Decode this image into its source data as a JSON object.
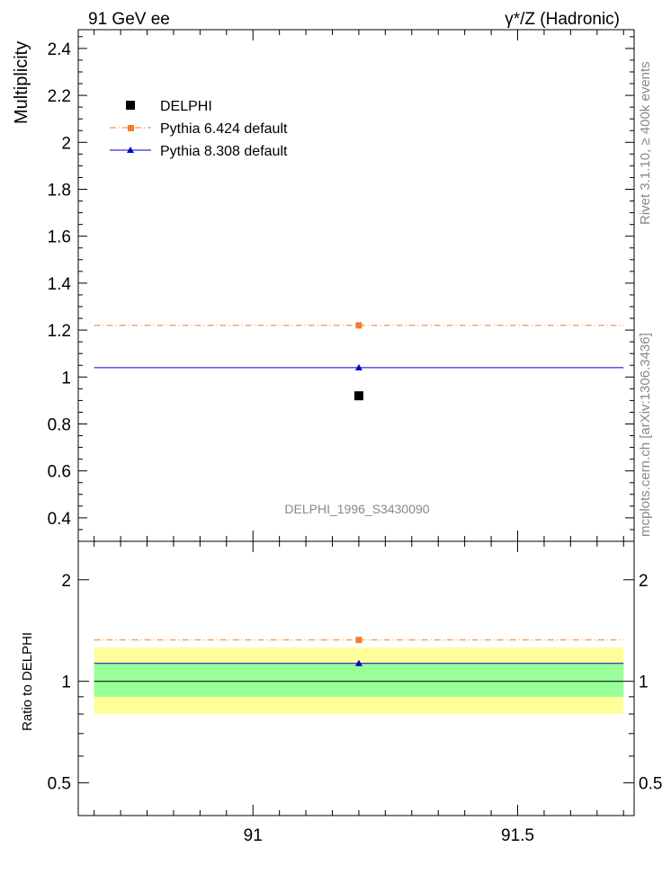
{
  "header": {
    "left": "91 GeV ee",
    "right": "γ*/Z (Hadronic)"
  },
  "side_labels": {
    "rivet": "Rivet 3.1.10, ≥ 400k events",
    "mcplots": "mcplots.cern.ch [arXiv:1306.3436]"
  },
  "watermark": "DELPHI_1996_S3430090",
  "colors": {
    "data": "#000000",
    "pythia6": "#f07e2d",
    "pythia8": "#0000cc",
    "band_inner": "#99ff99",
    "band_outer": "#ffff99",
    "gray_text": "#888888"
  },
  "chart_data": [
    {
      "id": "main",
      "type": "scatter",
      "ylabel": "Multiplicity",
      "xlim": [
        90.67,
        91.72
      ],
      "ylim": [
        0.3,
        2.48
      ],
      "yticks_major": [
        0.4,
        0.6,
        0.8,
        1,
        1.2,
        1.4,
        1.6,
        1.8,
        2,
        2.2,
        2.4
      ],
      "ytick_labels": [
        "0.4",
        "0.6",
        "0.8",
        "1",
        "1.2",
        "1.4",
        "1.6",
        "1.8",
        "2",
        "2.2",
        "2.4"
      ],
      "legend": [
        "DELPHI",
        "Pythia 6.424 default",
        "Pythia 8.308 default"
      ],
      "legend_position": "top-left",
      "series": [
        {
          "name": "DELPHI",
          "x": 91.2,
          "y": 0.92,
          "marker": "square"
        },
        {
          "name": "Pythia 6.424 default",
          "x": 91.2,
          "y": 1.22,
          "xrange": [
            90.7,
            91.7
          ],
          "marker": "square",
          "style": "dash-dot"
        },
        {
          "name": "Pythia 8.308 default",
          "x": 91.2,
          "y": 1.04,
          "xrange": [
            90.7,
            91.7
          ],
          "marker": "triangle",
          "style": "solid"
        }
      ]
    },
    {
      "id": "ratio",
      "type": "scatter",
      "ylabel": "Ratio to DELPHI",
      "yscale": "log",
      "xlim": [
        90.67,
        91.72
      ],
      "ylim": [
        0.4,
        2.6
      ],
      "yticks_major": [
        0.5,
        1,
        2
      ],
      "ytick_labels": [
        "0.5",
        "1",
        "2"
      ],
      "xticks_major": [
        91,
        91.5
      ],
      "xtick_labels": [
        "91",
        "91.5"
      ],
      "bands": [
        {
          "name": "stat+syst",
          "range": [
            0.8,
            1.26
          ],
          "color": "#ffff99"
        },
        {
          "name": "stat",
          "range": [
            0.9,
            1.13
          ],
          "color": "#99ff99"
        }
      ],
      "series": [
        {
          "name": "Pythia 6.424 default",
          "x": 91.2,
          "y": 1.326,
          "xrange": [
            90.7,
            91.7
          ]
        },
        {
          "name": "Pythia 8.308 default",
          "x": 91.2,
          "y": 1.13,
          "xrange": [
            90.7,
            91.7
          ]
        }
      ]
    }
  ]
}
